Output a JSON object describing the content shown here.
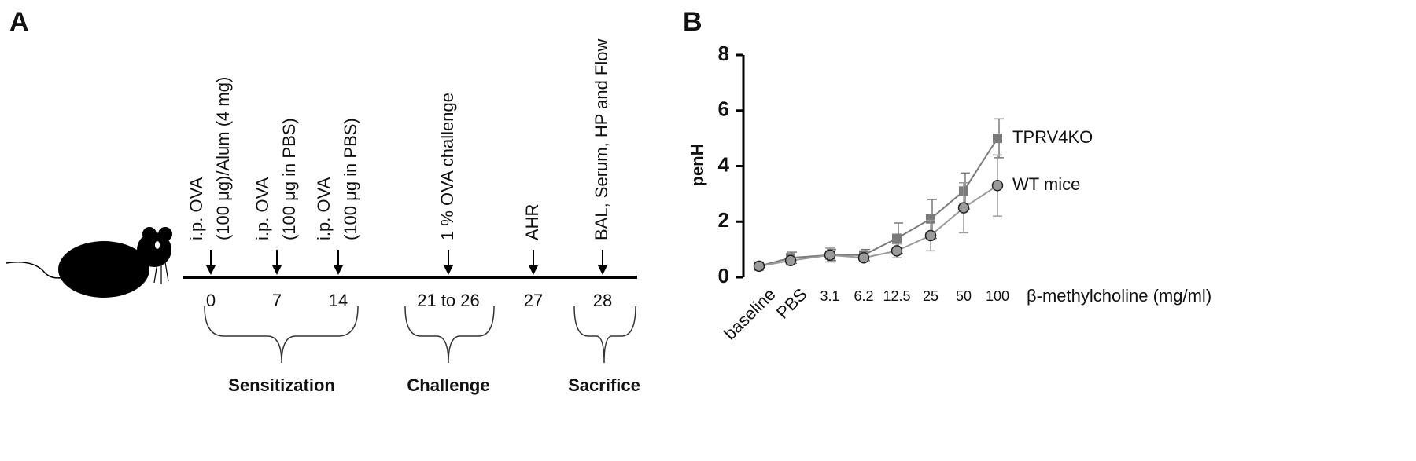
{
  "panel_a": {
    "label": "A",
    "events": [
      {
        "day": "0",
        "lines": [
          "i.p. OVA",
          "(100 μg)/Alum (4 mg)"
        ]
      },
      {
        "day": "7",
        "lines": [
          "i.p. OVA",
          "(100 μg in PBS)"
        ]
      },
      {
        "day": "14",
        "lines": [
          "i.p. OVA",
          "(100 μg in PBS)"
        ]
      },
      {
        "day": "21 to 26",
        "lines": [
          "1 % OVA challenge"
        ]
      },
      {
        "day": "27",
        "lines": [
          "AHR"
        ]
      },
      {
        "day": "28",
        "lines": [
          "BAL, Serum, HP and Flow"
        ]
      }
    ],
    "phases": [
      "Sensitization",
      "Challenge",
      "Sacrifice"
    ]
  },
  "chart_data": {
    "type": "line",
    "label": "B",
    "y_label": "penH",
    "x_label": "β-methylcholine (mg/ml)",
    "categories": [
      "baseline",
      "PBS",
      "3.1",
      "6.2",
      "12.5",
      "25",
      "50",
      "100"
    ],
    "ylim": [
      0,
      8
    ],
    "yticks": [
      0,
      2,
      4,
      6,
      8
    ],
    "series": [
      {
        "name": "TPRV4KO",
        "color": "#7a7a7a",
        "marker": "square",
        "values": [
          0.4,
          0.7,
          0.8,
          0.8,
          1.4,
          2.1,
          3.1,
          5.0
        ],
        "errors": [
          0.05,
          0.2,
          0.2,
          0.2,
          0.55,
          0.7,
          0.65,
          0.7
        ]
      },
      {
        "name": "WT mice",
        "color": "#9a9a9a",
        "marker": "circle",
        "values": [
          0.4,
          0.6,
          0.8,
          0.7,
          0.95,
          1.5,
          2.5,
          3.3
        ],
        "errors": [
          0.05,
          0.15,
          0.25,
          0.1,
          0.25,
          0.55,
          0.9,
          1.1
        ]
      }
    ]
  }
}
